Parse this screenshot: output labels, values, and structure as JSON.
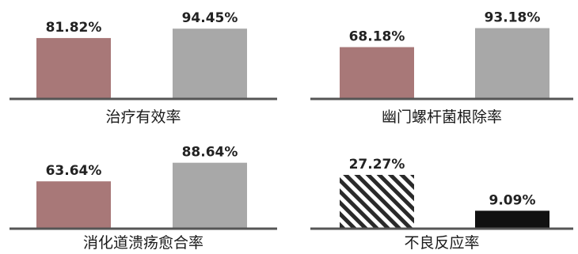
{
  "chart_data": [
    {
      "type": "bar",
      "xlabel": "治疗有效率",
      "categories": [
        "",
        ""
      ],
      "values": [
        81.82,
        94.45
      ],
      "value_labels": [
        "81.82%",
        "94.45%"
      ],
      "ylim": [
        0,
        100
      ],
      "grid": false,
      "colors": [
        "#a87878",
        "#a8a8a8"
      ],
      "patterns": [
        "solid",
        "solid"
      ]
    },
    {
      "type": "bar",
      "xlabel": "幽门螺杆菌根除率",
      "categories": [
        "",
        ""
      ],
      "values": [
        68.18,
        93.18
      ],
      "value_labels": [
        "68.18%",
        "93.18%"
      ],
      "ylim": [
        0,
        100
      ],
      "grid": false,
      "colors": [
        "#a87878",
        "#a8a8a8"
      ],
      "patterns": [
        "solid",
        "solid"
      ]
    },
    {
      "type": "bar",
      "xlabel": "消化道溃疡愈合率",
      "categories": [
        "",
        ""
      ],
      "values": [
        63.64,
        88.64
      ],
      "value_labels": [
        "63.64%",
        "88.64%"
      ],
      "ylim": [
        0,
        100
      ],
      "grid": false,
      "colors": [
        "#a87878",
        "#a8a8a8"
      ],
      "patterns": [
        "solid",
        "solid"
      ]
    },
    {
      "type": "bar",
      "xlabel": "不良反应率",
      "categories": [
        "",
        ""
      ],
      "values": [
        27.27,
        9.09
      ],
      "value_labels": [
        "27.27%",
        "9.09%"
      ],
      "ylim": [
        0,
        30
      ],
      "grid": false,
      "colors": [
        "#2a2a2a",
        "#111111"
      ],
      "patterns": [
        "diagonal-stripes",
        "solid"
      ]
    }
  ]
}
